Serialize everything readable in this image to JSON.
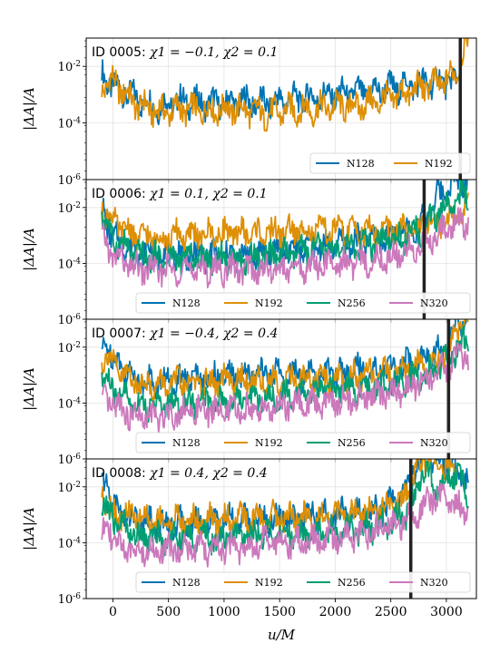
{
  "figure": {
    "xlabel": "u/M",
    "ylabel": "|ΔA|/A"
  },
  "chart_data": [
    {
      "type": "line",
      "panel_title": {
        "id": "ID 0005:",
        "spins": "χ1 = −0.1, χ2 = 0.1"
      },
      "xlim": [
        -240,
        3270
      ],
      "ylim": [
        1e-06,
        0.1
      ],
      "yscale": "log",
      "xticks": [
        0,
        500,
        1000,
        1500,
        2000,
        2500,
        3000
      ],
      "yticks": [
        1e-06,
        0.0001,
        0.01
      ],
      "ytick_labels": [
        "10^-6",
        "10^-4",
        "10^-2"
      ],
      "grid": true,
      "legend": "bottom-right",
      "merger_u": 3125,
      "series": [
        {
          "name": "N128",
          "color": "#0173b2",
          "x": [
            -100,
            0,
            200,
            400,
            600,
            800,
            1000,
            1200,
            1400,
            1600,
            1800,
            2000,
            2200,
            2400,
            2600,
            2800,
            3000,
            3100
          ],
          "y": [
            0.005,
            0.002,
            0.0008,
            0.00035,
            0.0006,
            0.0005,
            0.0005,
            0.0006,
            0.0005,
            0.0007,
            0.0008,
            0.001,
            0.0012,
            0.0015,
            0.002,
            0.0025,
            0.003,
            0.003
          ]
        },
        {
          "name": "N192",
          "color": "#de8f05",
          "x": [
            -100,
            0,
            200,
            400,
            600,
            800,
            1000,
            1200,
            1400,
            1600,
            1800,
            2000,
            2200,
            2400,
            2600,
            2800,
            3000,
            3100,
            3200
          ],
          "y": [
            0.002,
            0.003,
            0.0005,
            0.00025,
            0.0003,
            0.0003,
            0.0003,
            0.0003,
            0.0002,
            0.0003,
            0.0003,
            0.0004,
            0.0004,
            0.0006,
            0.001,
            0.002,
            0.003,
            0.008,
            0.1
          ]
        }
      ]
    },
    {
      "type": "line",
      "panel_title": {
        "id": "ID 0006:",
        "spins": "χ1 = 0.1, χ2 = 0.1"
      },
      "xlim": [
        -240,
        3270
      ],
      "ylim": [
        1e-06,
        0.1
      ],
      "yscale": "log",
      "xticks": [
        0,
        500,
        1000,
        1500,
        2000,
        2500,
        3000
      ],
      "yticks": [
        1e-06,
        0.0001,
        0.01
      ],
      "ytick_labels": [
        "10^-6",
        "10^-4",
        "10^-2"
      ],
      "grid": true,
      "legend": "bottom-right",
      "merger_u": 2800,
      "series": [
        {
          "name": "N128",
          "color": "#0173b2",
          "x": [
            -100,
            0,
            200,
            400,
            600,
            800,
            1000,
            1200,
            1400,
            1600,
            1800,
            2000,
            2200,
            2400,
            2600,
            2800,
            2900,
            3000,
            3100,
            3200
          ],
          "y": [
            0.01,
            0.0008,
            0.0003,
            0.0002,
            0.0002,
            0.0002,
            0.0002,
            0.0002,
            0.00025,
            0.0003,
            0.0004,
            0.0005,
            0.0006,
            0.0008,
            0.0012,
            0.003,
            0.02,
            0.05,
            0.1,
            0.1
          ]
        },
        {
          "name": "N192",
          "color": "#de8f05",
          "x": [
            -100,
            0,
            200,
            400,
            600,
            800,
            1000,
            1200,
            1400,
            1600,
            1800,
            2000,
            2200,
            2400,
            2600,
            2800,
            2900,
            3000,
            3100,
            3200
          ],
          "y": [
            0.01,
            0.003,
            0.001,
            0.0008,
            0.001,
            0.001,
            0.0012,
            0.0012,
            0.0012,
            0.0015,
            0.0015,
            0.0015,
            0.0015,
            0.0015,
            0.0015,
            0.002,
            0.003,
            0.004,
            0.005,
            0.01
          ]
        },
        {
          "name": "N256",
          "color": "#029e73",
          "x": [
            -100,
            0,
            200,
            400,
            600,
            800,
            1000,
            1200,
            1400,
            1600,
            1800,
            2000,
            2200,
            2400,
            2600,
            2800,
            2900,
            3000,
            3100,
            3200
          ],
          "y": [
            0.005,
            0.0008,
            0.0002,
            0.00015,
            0.00015,
            0.00015,
            0.00015,
            0.00015,
            0.0002,
            0.0002,
            0.0003,
            0.0003,
            0.0004,
            0.0005,
            0.0008,
            0.002,
            0.005,
            0.01,
            0.02,
            0.03
          ]
        },
        {
          "name": "N320",
          "color": "#cc78bc",
          "x": [
            -100,
            0,
            200,
            400,
            600,
            800,
            1000,
            1200,
            1400,
            1600,
            1800,
            2000,
            2200,
            2400,
            2600,
            2800,
            2900,
            3000,
            3100,
            3200
          ],
          "y": [
            0.0007,
            0.0002,
            6e-05,
            6e-05,
            6e-05,
            6e-05,
            6e-05,
            6e-05,
            6e-05,
            6e-05,
            8e-05,
            0.0001,
            0.0001,
            0.00015,
            0.0002,
            0.0005,
            0.001,
            0.002,
            0.003,
            0.003
          ]
        }
      ]
    },
    {
      "type": "line",
      "panel_title": {
        "id": "ID 0007:",
        "spins": "χ1 = −0.4, χ2 = 0.4"
      },
      "xlim": [
        -240,
        3270
      ],
      "ylim": [
        1e-06,
        0.1
      ],
      "yscale": "log",
      "xticks": [
        0,
        500,
        1000,
        1500,
        2000,
        2500,
        3000
      ],
      "yticks": [
        1e-06,
        0.0001,
        0.01
      ],
      "ytick_labels": [
        "10^-6",
        "10^-4",
        "10^-2"
      ],
      "grid": true,
      "legend": "bottom-right",
      "merger_u": 3020,
      "series": [
        {
          "name": "N128",
          "color": "#0173b2",
          "x": [
            -100,
            -50,
            0,
            200,
            400,
            600,
            800,
            1000,
            1200,
            1400,
            1600,
            1800,
            2000,
            2200,
            2400,
            2600,
            2800,
            3000,
            3100,
            3200
          ],
          "y": [
            0.005,
            0.02,
            0.004,
            0.0008,
            0.0005,
            0.0008,
            0.0008,
            0.0008,
            0.001,
            0.001,
            0.001,
            0.001,
            0.0012,
            0.0015,
            0.0015,
            0.002,
            0.004,
            0.008,
            0.1,
            0.1
          ]
        },
        {
          "name": "N192",
          "color": "#de8f05",
          "x": [
            -100,
            -50,
            0,
            200,
            400,
            600,
            800,
            1000,
            1200,
            1400,
            1600,
            1800,
            2000,
            2200,
            2400,
            2600,
            2800,
            3000,
            3100,
            3200
          ],
          "y": [
            0.003,
            0.008,
            0.002,
            0.0006,
            0.0004,
            0.0005,
            0.0005,
            0.0006,
            0.0006,
            0.0006,
            0.0007,
            0.0007,
            0.0008,
            0.0008,
            0.001,
            0.0015,
            0.002,
            0.005,
            0.05,
            0.1
          ]
        },
        {
          "name": "N256",
          "color": "#029e73",
          "x": [
            -100,
            0,
            200,
            400,
            600,
            800,
            1000,
            1200,
            1400,
            1600,
            1800,
            2000,
            2200,
            2400,
            2600,
            2800,
            3000,
            3100,
            3200
          ],
          "y": [
            0.0008,
            0.0003,
            0.0001,
            8e-05,
            0.0001,
            0.00012,
            0.00012,
            0.00015,
            0.00015,
            0.0002,
            0.00025,
            0.0003,
            0.0003,
            0.0004,
            0.0006,
            0.001,
            0.003,
            0.01,
            0.02
          ]
        },
        {
          "name": "N320",
          "color": "#cc78bc",
          "x": [
            -100,
            0,
            200,
            400,
            600,
            800,
            1000,
            1200,
            1400,
            1600,
            1800,
            2000,
            2200,
            2400,
            2600,
            2800,
            3000,
            3100,
            3200
          ],
          "y": [
            0.0001,
            0.0001,
            3e-05,
            3e-05,
            5e-05,
            5e-05,
            5e-05,
            6e-05,
            6e-05,
            8e-05,
            0.0001,
            0.00012,
            0.00015,
            0.0002,
            0.0003,
            0.0006,
            0.002,
            0.004,
            0.005
          ]
        }
      ]
    },
    {
      "type": "line",
      "panel_title": {
        "id": "ID 0008:",
        "spins": "χ1 = 0.4, χ2 = 0.4"
      },
      "xlim": [
        -240,
        3270
      ],
      "ylim": [
        1e-06,
        0.1
      ],
      "yscale": "log",
      "xticks": [
        0,
        500,
        1000,
        1500,
        2000,
        2500,
        3000
      ],
      "xtick_labels": [
        "0",
        "500",
        "1000",
        "1500",
        "2000",
        "2500",
        "3000"
      ],
      "yticks": [
        1e-06,
        0.0001,
        0.01
      ],
      "ytick_labels": [
        "10^-6",
        "10^-4",
        "10^-2"
      ],
      "grid": true,
      "legend": "bottom-right",
      "merger_u": 2680,
      "series": [
        {
          "name": "N128",
          "color": "#0173b2",
          "x": [
            -100,
            -50,
            0,
            200,
            400,
            600,
            800,
            1000,
            1200,
            1400,
            1600,
            1800,
            2000,
            2200,
            2400,
            2600,
            2700,
            2800,
            2900,
            3000,
            3100,
            3200
          ],
          "y": [
            0.01,
            0.02,
            0.002,
            0.0006,
            0.0005,
            0.0005,
            0.0006,
            0.0006,
            0.0006,
            0.0007,
            0.0008,
            0.0009,
            0.001,
            0.0012,
            0.0015,
            0.004,
            0.05,
            0.1,
            0.1,
            0.08,
            0.03,
            0.02
          ]
        },
        {
          "name": "N192",
          "color": "#de8f05",
          "x": [
            -100,
            0,
            200,
            400,
            600,
            800,
            1000,
            1200,
            1400,
            1600,
            1800,
            2000,
            2200,
            2400,
            2600,
            2700,
            2800,
            2900,
            3000,
            3100
          ],
          "y": [
            0.008,
            0.001,
            0.0008,
            0.0006,
            0.0006,
            0.0006,
            0.0007,
            0.0007,
            0.0008,
            0.0008,
            0.0008,
            0.0009,
            0.001,
            0.0012,
            0.003,
            0.03,
            0.1,
            0.08,
            0.06,
            0.04
          ]
        },
        {
          "name": "N256",
          "color": "#029e73",
          "x": [
            -100,
            0,
            200,
            400,
            600,
            800,
            1000,
            1200,
            1400,
            1600,
            1800,
            2000,
            2200,
            2400,
            2600,
            2700,
            2800,
            2900,
            3000,
            3100,
            3200
          ],
          "y": [
            0.002,
            0.0008,
            0.0002,
            0.00015,
            0.00015,
            0.00015,
            0.00015,
            0.0002,
            0.0002,
            0.0002,
            0.00025,
            0.0003,
            0.0003,
            0.0004,
            0.0008,
            0.003,
            0.05,
            0.01,
            0.02,
            0.03,
            0.005
          ]
        },
        {
          "name": "N320",
          "color": "#cc78bc",
          "x": [
            -100,
            -50,
            0,
            200,
            400,
            600,
            800,
            1000,
            1200,
            1400,
            1600,
            1800,
            2000,
            2200,
            2400,
            2600,
            2700,
            2800,
            2900,
            3000,
            3100,
            3200
          ],
          "y": [
            0.0001,
            0.001,
            0.0001,
            5e-05,
            5e-05,
            6e-05,
            6e-05,
            6e-05,
            8e-05,
            0.0001,
            0.0001,
            0.00012,
            0.00015,
            0.0002,
            0.0003,
            0.0005,
            0.001,
            0.002,
            0.005,
            0.003,
            0.002,
            0.0015
          ]
        }
      ]
    }
  ]
}
